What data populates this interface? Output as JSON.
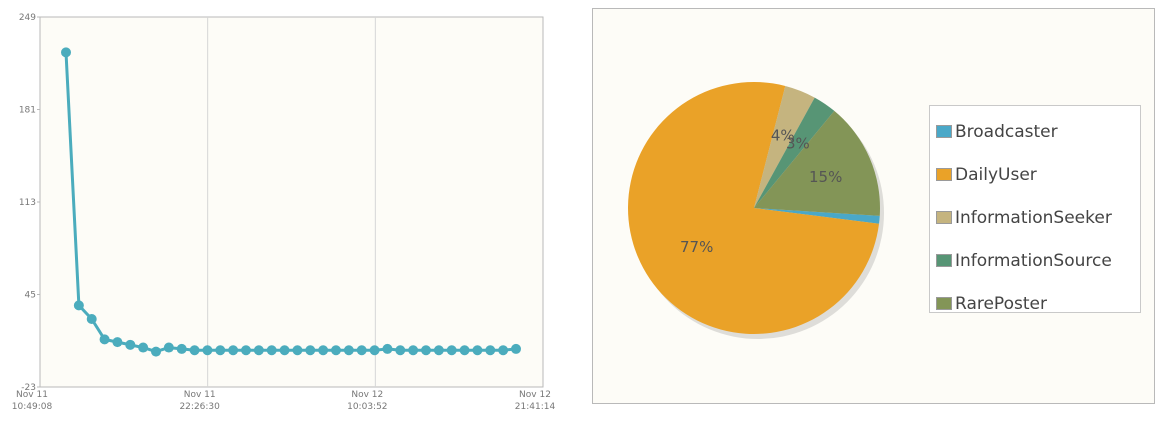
{
  "chart_data": [
    {
      "type": "line",
      "title": "",
      "xlabel": "",
      "ylabel": "",
      "ylim": [
        -23,
        249
      ],
      "y_ticks": [
        "249",
        "181",
        "113",
        "45",
        "-23"
      ],
      "x_tick_labels": [
        {
          "line1": "Nov 11",
          "line2": "10:49:08"
        },
        {
          "line1": "Nov 11",
          "line2": "22:26:30"
        },
        {
          "line1": "Nov 12",
          "line2": "10:03:52"
        },
        {
          "line1": "Nov 12",
          "line2": "21:41:14"
        }
      ],
      "grid": true,
      "color": "#4bacbd",
      "series": [
        {
          "values": [
            223,
            37,
            27,
            12,
            10,
            8,
            6,
            3,
            6,
            5,
            4,
            4,
            4,
            4,
            4,
            4,
            4,
            4,
            4,
            4,
            4,
            4,
            4,
            4,
            4,
            5,
            4,
            4,
            4,
            4,
            4,
            4,
            4,
            4,
            4,
            5
          ]
        }
      ]
    },
    {
      "type": "pie",
      "title": "",
      "legend_position": "right",
      "slices": [
        {
          "label": "Broadcaster",
          "value": 1,
          "display": "",
          "color": "#4aa8c8"
        },
        {
          "label": "DailyUser",
          "value": 77,
          "display": "77%",
          "color": "#eaa228"
        },
        {
          "label": "InformationSeeker",
          "value": 4,
          "display": "4%",
          "color": "#c5b47f"
        },
        {
          "label": "InformationSource",
          "value": 3,
          "display": "3%",
          "color": "#579575"
        },
        {
          "label": "RarePoster",
          "value": 15,
          "display": "15%",
          "color": "#839557"
        }
      ]
    }
  ]
}
